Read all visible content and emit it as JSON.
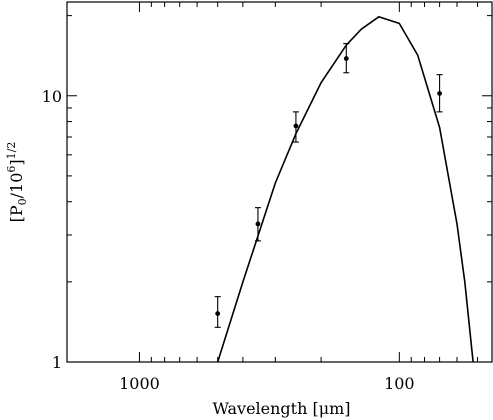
{
  "chart_data": {
    "type": "scatter",
    "title": "",
    "xlabel": "Wavelength [μm]",
    "ylabel": "[P0/10^6]^1/2",
    "x_scale": "log",
    "y_scale": "log",
    "x_reversed": true,
    "xlim": [
      1900,
      44
    ],
    "ylim": [
      1,
      22.5
    ],
    "x_ticks": [
      1000,
      100
    ],
    "x_tick_labels": [
      "1000",
      "100"
    ],
    "y_ticks": [
      1,
      10
    ],
    "y_tick_labels": [
      "1",
      "10"
    ],
    "grid": false,
    "legend": "none",
    "series": [
      {
        "kind": "points_with_errorbars",
        "points": [
          {
            "x": 500,
            "y": 1.52,
            "err_low": 0.17,
            "err_high": 0.24
          },
          {
            "x": 350,
            "y": 3.3,
            "err_low": 0.45,
            "err_high": 0.5
          },
          {
            "x": 250,
            "y": 7.7,
            "err_low": 1.0,
            "err_high": 1.0
          },
          {
            "x": 160,
            "y": 13.8,
            "err_low": 1.6,
            "err_high": 1.9
          },
          {
            "x": 70,
            "y": 10.2,
            "err_low": 1.5,
            "err_high": 1.8
          }
        ]
      },
      {
        "kind": "curve",
        "points": [
          {
            "x": 500,
            "y": 1.0
          },
          {
            "x": 400,
            "y": 2.0
          },
          {
            "x": 300,
            "y": 4.7
          },
          {
            "x": 250,
            "y": 7.2
          },
          {
            "x": 200,
            "y": 11.2
          },
          {
            "x": 160,
            "y": 15.5
          },
          {
            "x": 140,
            "y": 17.8
          },
          {
            "x": 120,
            "y": 19.8
          },
          {
            "x": 100,
            "y": 18.7
          },
          {
            "x": 85,
            "y": 14.2
          },
          {
            "x": 70,
            "y": 7.6
          },
          {
            "x": 60,
            "y": 3.3
          },
          {
            "x": 56,
            "y": 2.0
          },
          {
            "x": 52,
            "y": 1.0
          }
        ]
      }
    ]
  }
}
